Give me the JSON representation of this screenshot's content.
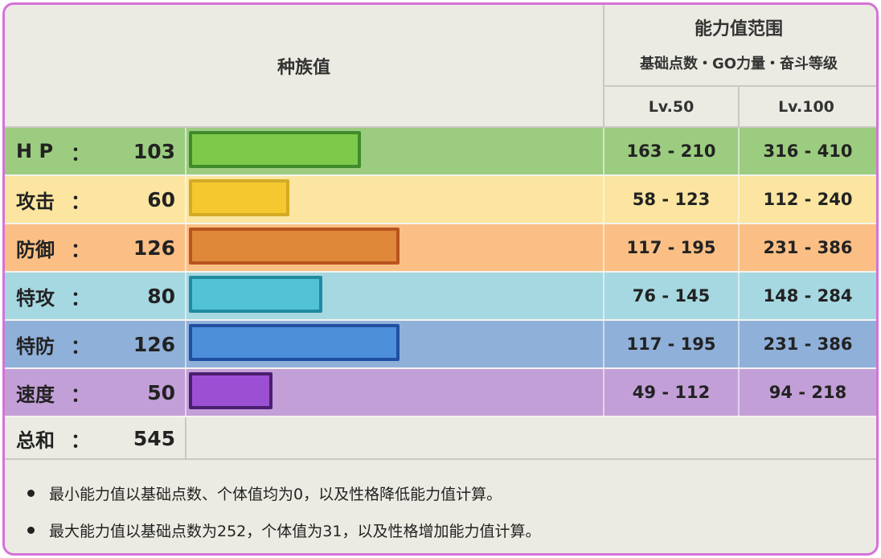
{
  "header": {
    "base_stats_label": "种族值",
    "range_title": "能力值范围",
    "range_subtitle": "基础点数・GO力量・奋斗等级",
    "lv50_label": "Lv.50",
    "lv100_label": "Lv.100"
  },
  "colon": "：",
  "stats": [
    {
      "name": "H P",
      "value": 103,
      "lv50": "163 - 210",
      "lv100": "316 - 410",
      "row_color": "#9ccc80",
      "bar_fill": "#7dc94a",
      "bar_border": "#3f8a2a"
    },
    {
      "name": "攻击",
      "value": 60,
      "lv50": "58 - 123",
      "lv100": "112 - 240",
      "row_color": "#fbe5a0",
      "bar_fill": "#f5c830",
      "bar_border": "#d2aa24"
    },
    {
      "name": "防御",
      "value": 126,
      "lv50": "117 - 195",
      "lv100": "231 - 386",
      "row_color": "#fbbf85",
      "bar_fill": "#e0883a",
      "bar_border": "#b8541e"
    },
    {
      "name": "特攻",
      "value": 80,
      "lv50": "76 - 145",
      "lv100": "148 - 284",
      "row_color": "#a6d8e2",
      "bar_fill": "#52c3d6",
      "bar_border": "#1f8aa0"
    },
    {
      "name": "特防",
      "value": 126,
      "lv50": "117 - 195",
      "lv100": "231 - 386",
      "row_color": "#8fb0d9",
      "bar_fill": "#4d8fd8",
      "bar_border": "#1f4fa0"
    },
    {
      "name": "速度",
      "value": 50,
      "lv50": "49 - 112",
      "lv100": "94 - 218",
      "row_color": "#c39fd8",
      "bar_fill": "#9b4fd2",
      "bar_border": "#4a1f70"
    }
  ],
  "total": {
    "name": "总和",
    "value": 545
  },
  "notes": [
    "最小能力值以基础点数、个体值均为0，以及性格降低能力值计算。",
    "最大能力值以基础点数为252，个体值为31，以及性格增加能力值计算。"
  ],
  "chart_data": {
    "type": "bar",
    "title": "种族值",
    "categories": [
      "H P",
      "攻击",
      "防御",
      "特攻",
      "特防",
      "速度"
    ],
    "values": [
      103,
      60,
      126,
      80,
      126,
      50
    ],
    "total": 545,
    "ranges_lv50": [
      "163 - 210",
      "58 - 123",
      "117 - 195",
      "76 - 145",
      "117 - 195",
      "49 - 112"
    ],
    "ranges_lv100": [
      "316 - 410",
      "112 - 240",
      "231 - 386",
      "148 - 284",
      "231 - 386",
      "94 - 218"
    ]
  },
  "colors": {
    "frame_border": "#d672d8",
    "background": "#ecebe3"
  }
}
